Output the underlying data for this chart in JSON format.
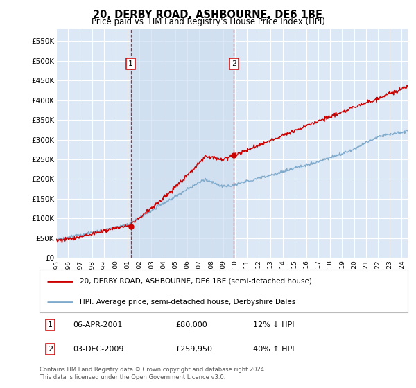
{
  "title": "20, DERBY ROAD, ASHBOURNE, DE6 1BE",
  "subtitle": "Price paid vs. HM Land Registry's House Price Index (HPI)",
  "ylabel_ticks": [
    "£0",
    "£50K",
    "£100K",
    "£150K",
    "£200K",
    "£250K",
    "£300K",
    "£350K",
    "£400K",
    "£450K",
    "£500K",
    "£550K"
  ],
  "ytick_values": [
    0,
    50000,
    100000,
    150000,
    200000,
    250000,
    300000,
    350000,
    400000,
    450000,
    500000,
    550000
  ],
  "ylim": [
    0,
    580000
  ],
  "xlim_start": 1995.0,
  "xlim_end": 2024.5,
  "bg_color": "#dce8f5",
  "shade_color": "#ccddf0",
  "grid_color": "#ffffff",
  "red_color": "#cc0000",
  "blue_color": "#7faacc",
  "marker1_date": 2001.27,
  "marker1_value": 80000,
  "marker2_date": 2009.92,
  "marker2_value": 259950,
  "legend_label1": "20, DERBY ROAD, ASHBOURNE, DE6 1BE (semi-detached house)",
  "legend_label2": "HPI: Average price, semi-detached house, Derbyshire Dales",
  "note1_label": "1",
  "note1_date": "06-APR-2001",
  "note1_price": "£80,000",
  "note1_hpi": "12% ↓ HPI",
  "note2_label": "2",
  "note2_date": "03-DEC-2009",
  "note2_price": "£259,950",
  "note2_hpi": "40% ↑ HPI",
  "footer": "Contains HM Land Registry data © Crown copyright and database right 2024.\nThis data is licensed under the Open Government Licence v3.0."
}
